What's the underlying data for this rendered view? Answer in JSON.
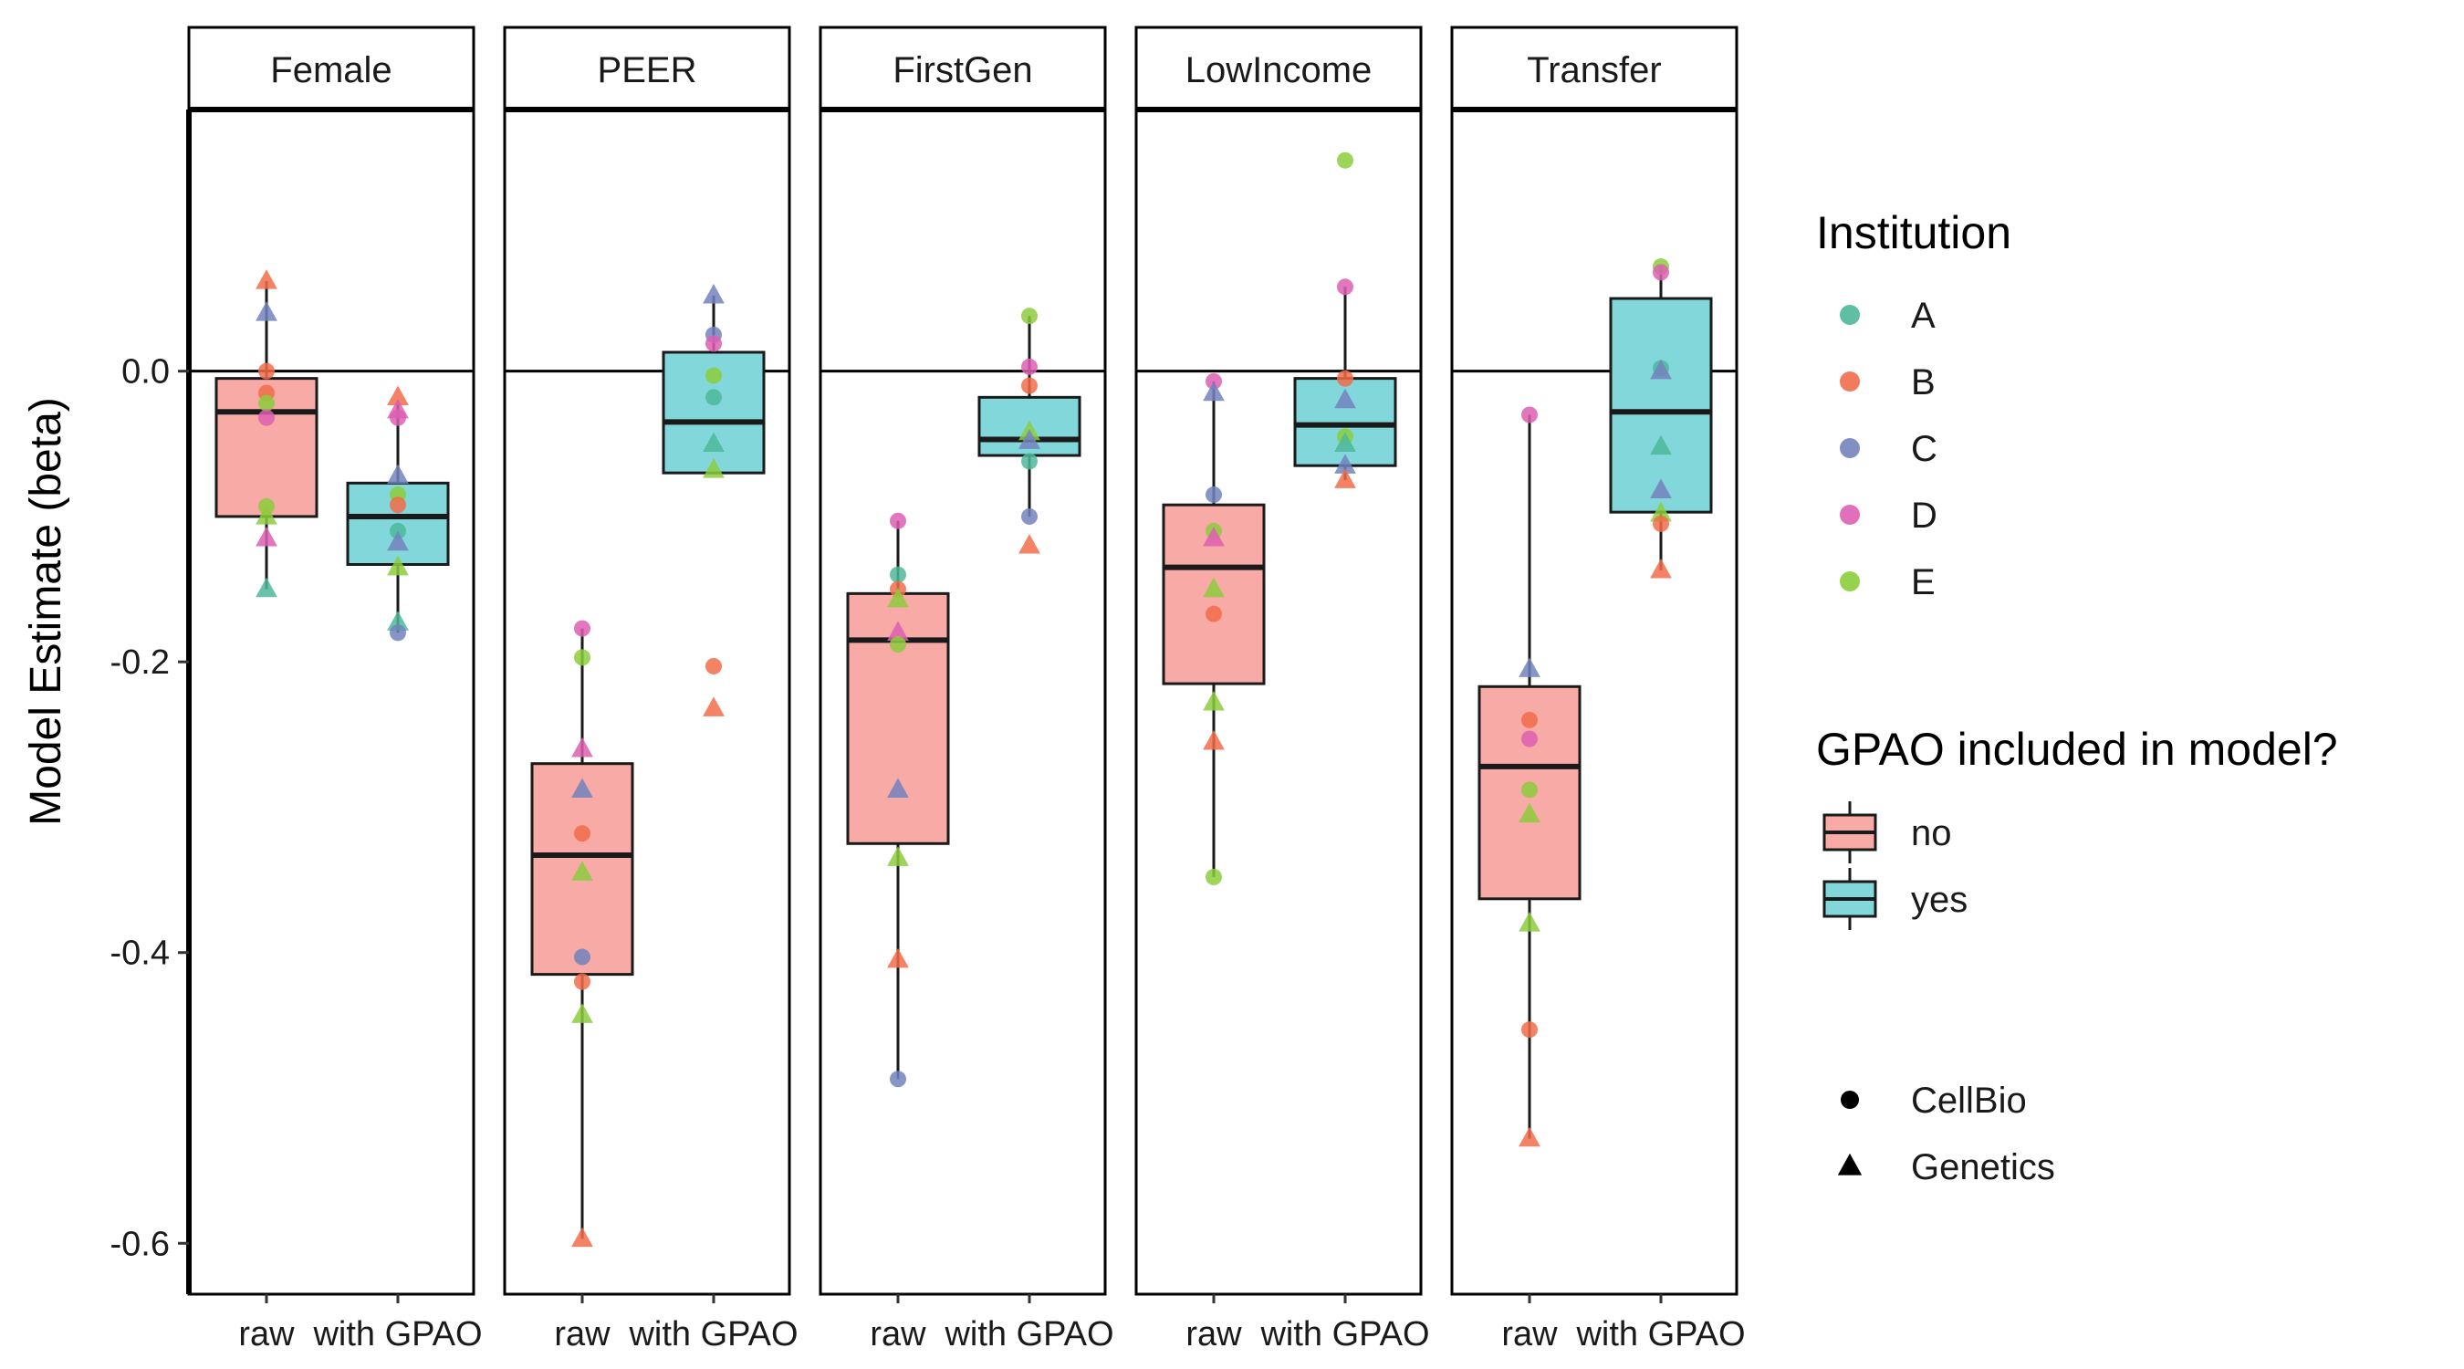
{
  "chart_data": {
    "type": "boxplot",
    "ylabel": "Model Estimate (beta)",
    "ylim": [
      -0.635,
      0.18
    ],
    "yticks": [
      0.0,
      -0.2,
      -0.4,
      -0.6
    ],
    "ytick_labels": [
      "0.0",
      "-0.2",
      "-0.4",
      "-0.6"
    ],
    "reference_line_y": 0,
    "categories": [
      "raw",
      "with GPAO"
    ],
    "facets": [
      {
        "label": "Female",
        "boxes": [
          {
            "category": "raw",
            "fill": "no",
            "whisker_low": -0.15,
            "q1": -0.1,
            "median": -0.028,
            "q3": -0.005,
            "whisker_high": 0.062
          },
          {
            "category": "with GPAO",
            "fill": "yes",
            "whisker_low": -0.18,
            "q1": -0.133,
            "median": -0.1,
            "q3": -0.077,
            "whisker_high": -0.02
          }
        ],
        "points": [
          {
            "category": "raw",
            "institution": "B",
            "course": "Genetics",
            "y": 0.062
          },
          {
            "category": "raw",
            "institution": "C",
            "course": "Genetics",
            "y": 0.04
          },
          {
            "category": "raw",
            "institution": "B",
            "course": "CellBio",
            "y": 0.0
          },
          {
            "category": "raw",
            "institution": "B",
            "course": "CellBio",
            "y": -0.015
          },
          {
            "category": "raw",
            "institution": "E",
            "course": "CellBio",
            "y": -0.022
          },
          {
            "category": "raw",
            "institution": "D",
            "course": "CellBio",
            "y": -0.032
          },
          {
            "category": "raw",
            "institution": "E",
            "course": "CellBio",
            "y": -0.093
          },
          {
            "category": "raw",
            "institution": "E",
            "course": "Genetics",
            "y": -0.1
          },
          {
            "category": "raw",
            "institution": "D",
            "course": "Genetics",
            "y": -0.115
          },
          {
            "category": "raw",
            "institution": "A",
            "course": "Genetics",
            "y": -0.15
          },
          {
            "category": "with GPAO",
            "institution": "B",
            "course": "Genetics",
            "y": -0.018
          },
          {
            "category": "with GPAO",
            "institution": "D",
            "course": "Genetics",
            "y": -0.027
          },
          {
            "category": "with GPAO",
            "institution": "D",
            "course": "CellBio",
            "y": -0.032
          },
          {
            "category": "with GPAO",
            "institution": "C",
            "course": "Genetics",
            "y": -0.072
          },
          {
            "category": "with GPAO",
            "institution": "E",
            "course": "CellBio",
            "y": -0.085
          },
          {
            "category": "with GPAO",
            "institution": "B",
            "course": "CellBio",
            "y": -0.092
          },
          {
            "category": "with GPAO",
            "institution": "A",
            "course": "CellBio",
            "y": -0.11
          },
          {
            "category": "with GPAO",
            "institution": "C",
            "course": "Genetics",
            "y": -0.118
          },
          {
            "category": "with GPAO",
            "institution": "E",
            "course": "Genetics",
            "y": -0.135
          },
          {
            "category": "with GPAO",
            "institution": "A",
            "course": "Genetics",
            "y": -0.173
          },
          {
            "category": "with GPAO",
            "institution": "C",
            "course": "CellBio",
            "y": -0.18
          }
        ]
      },
      {
        "label": "PEER",
        "boxes": [
          {
            "category": "raw",
            "fill": "no",
            "whisker_low": -0.597,
            "q1": -0.415,
            "median": -0.333,
            "q3": -0.27,
            "whisker_high": -0.177
          },
          {
            "category": "with GPAO",
            "fill": "yes",
            "whisker_low": -0.07,
            "q1": -0.07,
            "median": -0.035,
            "q3": 0.013,
            "whisker_high": 0.052
          }
        ],
        "points": [
          {
            "category": "raw",
            "institution": "D",
            "course": "CellBio",
            "y": -0.177
          },
          {
            "category": "raw",
            "institution": "E",
            "course": "CellBio",
            "y": -0.197
          },
          {
            "category": "raw",
            "institution": "D",
            "course": "Genetics",
            "y": -0.26
          },
          {
            "category": "raw",
            "institution": "C",
            "course": "Genetics",
            "y": -0.288
          },
          {
            "category": "raw",
            "institution": "B",
            "course": "CellBio",
            "y": -0.318
          },
          {
            "category": "raw",
            "institution": "E",
            "course": "Genetics",
            "y": -0.345
          },
          {
            "category": "raw",
            "institution": "C",
            "course": "CellBio",
            "y": -0.403
          },
          {
            "category": "raw",
            "institution": "B",
            "course": "CellBio",
            "y": -0.42
          },
          {
            "category": "raw",
            "institution": "E",
            "course": "Genetics",
            "y": -0.443
          },
          {
            "category": "raw",
            "institution": "B",
            "course": "Genetics",
            "y": -0.597
          },
          {
            "category": "with GPAO",
            "institution": "C",
            "course": "Genetics",
            "y": 0.052
          },
          {
            "category": "with GPAO",
            "institution": "C",
            "course": "CellBio",
            "y": 0.025
          },
          {
            "category": "with GPAO",
            "institution": "D",
            "course": "CellBio",
            "y": 0.019
          },
          {
            "category": "with GPAO",
            "institution": "E",
            "course": "CellBio",
            "y": -0.003
          },
          {
            "category": "with GPAO",
            "institution": "A",
            "course": "CellBio",
            "y": -0.018
          },
          {
            "category": "with GPAO",
            "institution": "A",
            "course": "Genetics",
            "y": -0.05
          },
          {
            "category": "with GPAO",
            "institution": "E",
            "course": "Genetics",
            "y": -0.068
          },
          {
            "category": "with GPAO",
            "institution": "B",
            "course": "CellBio",
            "y": -0.203
          },
          {
            "category": "with GPAO",
            "institution": "B",
            "course": "Genetics",
            "y": -0.232
          }
        ]
      },
      {
        "label": "FirstGen",
        "boxes": [
          {
            "category": "raw",
            "fill": "no",
            "whisker_low": -0.487,
            "q1": -0.325,
            "median": -0.185,
            "q3": -0.153,
            "whisker_high": -0.103
          },
          {
            "category": "with GPAO",
            "fill": "yes",
            "whisker_low": -0.1,
            "q1": -0.058,
            "median": -0.047,
            "q3": -0.018,
            "whisker_high": 0.038
          }
        ],
        "points": [
          {
            "category": "raw",
            "institution": "D",
            "course": "CellBio",
            "y": -0.103
          },
          {
            "category": "raw",
            "institution": "A",
            "course": "CellBio",
            "y": -0.14
          },
          {
            "category": "raw",
            "institution": "B",
            "course": "CellBio",
            "y": -0.15
          },
          {
            "category": "raw",
            "institution": "E",
            "course": "Genetics",
            "y": -0.157
          },
          {
            "category": "raw",
            "institution": "D",
            "course": "Genetics",
            "y": -0.18
          },
          {
            "category": "raw",
            "institution": "E",
            "course": "CellBio",
            "y": -0.188
          },
          {
            "category": "raw",
            "institution": "C",
            "course": "Genetics",
            "y": -0.288
          },
          {
            "category": "raw",
            "institution": "E",
            "course": "Genetics",
            "y": -0.335
          },
          {
            "category": "raw",
            "institution": "B",
            "course": "Genetics",
            "y": -0.405
          },
          {
            "category": "raw",
            "institution": "C",
            "course": "CellBio",
            "y": -0.487
          },
          {
            "category": "with GPAO",
            "institution": "E",
            "course": "CellBio",
            "y": 0.038
          },
          {
            "category": "with GPAO",
            "institution": "D",
            "course": "CellBio",
            "y": 0.003
          },
          {
            "category": "with GPAO",
            "institution": "B",
            "course": "CellBio",
            "y": -0.01
          },
          {
            "category": "with GPAO",
            "institution": "E",
            "course": "Genetics",
            "y": -0.042
          },
          {
            "category": "with GPAO",
            "institution": "C",
            "course": "Genetics",
            "y": -0.048
          },
          {
            "category": "with GPAO",
            "institution": "A",
            "course": "CellBio",
            "y": -0.062
          },
          {
            "category": "with GPAO",
            "institution": "C",
            "course": "CellBio",
            "y": -0.1
          },
          {
            "category": "with GPAO",
            "institution": "B",
            "course": "Genetics",
            "y": -0.12
          }
        ]
      },
      {
        "label": "LowIncome",
        "boxes": [
          {
            "category": "raw",
            "fill": "no",
            "whisker_low": -0.348,
            "q1": -0.215,
            "median": -0.135,
            "q3": -0.092,
            "whisker_high": -0.007
          },
          {
            "category": "with GPAO",
            "fill": "yes",
            "whisker_low": -0.075,
            "q1": -0.065,
            "median": -0.037,
            "q3": -0.005,
            "whisker_high": 0.058
          }
        ],
        "points": [
          {
            "category": "raw",
            "institution": "D",
            "course": "CellBio",
            "y": -0.007
          },
          {
            "category": "raw",
            "institution": "C",
            "course": "Genetics",
            "y": -0.015
          },
          {
            "category": "raw",
            "institution": "C",
            "course": "CellBio",
            "y": -0.085
          },
          {
            "category": "raw",
            "institution": "E",
            "course": "CellBio",
            "y": -0.11
          },
          {
            "category": "raw",
            "institution": "D",
            "course": "Genetics",
            "y": -0.115
          },
          {
            "category": "raw",
            "institution": "E",
            "course": "Genetics",
            "y": -0.15
          },
          {
            "category": "raw",
            "institution": "B",
            "course": "CellBio",
            "y": -0.167
          },
          {
            "category": "raw",
            "institution": "E",
            "course": "Genetics",
            "y": -0.228
          },
          {
            "category": "raw",
            "institution": "B",
            "course": "Genetics",
            "y": -0.255
          },
          {
            "category": "raw",
            "institution": "E",
            "course": "CellBio",
            "y": -0.348
          },
          {
            "category": "with GPAO",
            "institution": "E",
            "course": "CellBio",
            "y": 0.145
          },
          {
            "category": "with GPAO",
            "institution": "D",
            "course": "CellBio",
            "y": 0.058
          },
          {
            "category": "with GPAO",
            "institution": "B",
            "course": "CellBio",
            "y": -0.005
          },
          {
            "category": "with GPAO",
            "institution": "C",
            "course": "Genetics",
            "y": -0.02
          },
          {
            "category": "with GPAO",
            "institution": "E",
            "course": "CellBio",
            "y": -0.045
          },
          {
            "category": "with GPAO",
            "institution": "A",
            "course": "Genetics",
            "y": -0.05
          },
          {
            "category": "with GPAO",
            "institution": "C",
            "course": "Genetics",
            "y": -0.065
          },
          {
            "category": "with GPAO",
            "institution": "B",
            "course": "Genetics",
            "y": -0.075
          }
        ]
      },
      {
        "label": "Transfer",
        "boxes": [
          {
            "category": "raw",
            "fill": "no",
            "whisker_low": -0.528,
            "q1": -0.363,
            "median": -0.272,
            "q3": -0.217,
            "whisker_high": -0.03
          },
          {
            "category": "with GPAO",
            "fill": "yes",
            "whisker_low": -0.137,
            "q1": -0.097,
            "median": -0.028,
            "q3": 0.05,
            "whisker_high": 0.072
          }
        ],
        "points": [
          {
            "category": "raw",
            "institution": "D",
            "course": "CellBio",
            "y": -0.03
          },
          {
            "category": "raw",
            "institution": "C",
            "course": "Genetics",
            "y": -0.205
          },
          {
            "category": "raw",
            "institution": "B",
            "course": "CellBio",
            "y": -0.24
          },
          {
            "category": "raw",
            "institution": "D",
            "course": "CellBio",
            "y": -0.253
          },
          {
            "category": "raw",
            "institution": "E",
            "course": "CellBio",
            "y": -0.288
          },
          {
            "category": "raw",
            "institution": "E",
            "course": "Genetics",
            "y": -0.305
          },
          {
            "category": "raw",
            "institution": "E",
            "course": "Genetics",
            "y": -0.38
          },
          {
            "category": "raw",
            "institution": "B",
            "course": "CellBio",
            "y": -0.453
          },
          {
            "category": "raw",
            "institution": "B",
            "course": "Genetics",
            "y": -0.528
          },
          {
            "category": "with GPAO",
            "institution": "E",
            "course": "CellBio",
            "y": 0.072
          },
          {
            "category": "with GPAO",
            "institution": "D",
            "course": "CellBio",
            "y": 0.068
          },
          {
            "category": "with GPAO",
            "institution": "A",
            "course": "CellBio",
            "y": 0.002
          },
          {
            "category": "with GPAO",
            "institution": "C",
            "course": "Genetics",
            "y": 0.0
          },
          {
            "category": "with GPAO",
            "institution": "A",
            "course": "Genetics",
            "y": -0.052
          },
          {
            "category": "with GPAO",
            "institution": "C",
            "course": "Genetics",
            "y": -0.082
          },
          {
            "category": "with GPAO",
            "institution": "E",
            "course": "Genetics",
            "y": -0.098
          },
          {
            "category": "with GPAO",
            "institution": "B",
            "course": "CellBio",
            "y": -0.105
          },
          {
            "category": "with GPAO",
            "institution": "B",
            "course": "Genetics",
            "y": -0.137
          }
        ]
      }
    ],
    "legends": [
      {
        "title": "Institution",
        "kind": "color",
        "items": [
          {
            "label": "A",
            "color": "#4DB89A"
          },
          {
            "label": "B",
            "color": "#F26C4A"
          },
          {
            "label": "C",
            "color": "#7383BD"
          },
          {
            "label": "D",
            "color": "#DE5FB3"
          },
          {
            "label": "E",
            "color": "#8CCD3C"
          }
        ]
      },
      {
        "title": "GPAO included in model?",
        "kind": "fill",
        "items": [
          {
            "label": "no",
            "key": "no",
            "color": "#F8AAA6"
          },
          {
            "label": "yes",
            "key": "yes",
            "color": "#82D7DB"
          }
        ]
      },
      {
        "title": "",
        "kind": "shape",
        "items": [
          {
            "label": "CellBio",
            "shape": "circle"
          },
          {
            "label": "Genetics",
            "shape": "triangle"
          }
        ]
      }
    ]
  }
}
